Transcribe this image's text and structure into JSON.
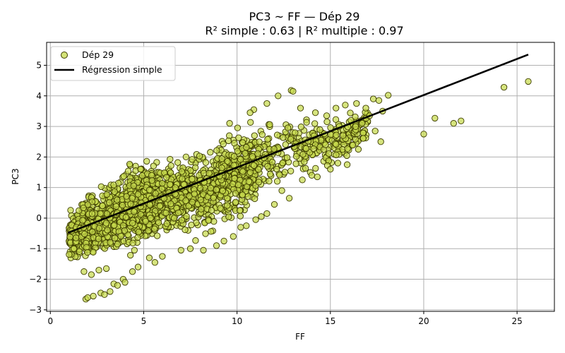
{
  "chart_data": {
    "type": "scatter",
    "title": "PC3 ~ FF — Dép 29",
    "subtitle": "R² simple : 0.63 | R² multiple : 0.97",
    "xlabel": "FF",
    "ylabel": "PC3",
    "xlim": [
      -0.2,
      27.0
    ],
    "ylim": [
      -3.05,
      5.75
    ],
    "xticks": [
      0,
      5,
      10,
      15,
      20,
      25
    ],
    "yticks": [
      -3,
      -2,
      -1,
      0,
      1,
      2,
      3,
      4,
      5
    ],
    "grid": true,
    "legend": {
      "placement": "top-left"
    },
    "colors": {
      "point_fill": "#c6d94c",
      "point_edge": "#3d3d00",
      "line": "#000000",
      "grid": "#b0b0b0"
    },
    "series": [
      {
        "name": "Dép 29",
        "kind": "scatter",
        "cloud": [
          {
            "x": 1.0,
            "y_min": -1.55,
            "y_max": 0.35
          },
          {
            "x": 2.0,
            "y_min": -1.6,
            "y_max": 1.0
          },
          {
            "x": 3.0,
            "y_min": -1.5,
            "y_max": 1.35
          },
          {
            "x": 4.0,
            "y_min": -1.3,
            "y_max": 1.9
          },
          {
            "x": 5.0,
            "y_min": -1.2,
            "y_max": 2.2
          },
          {
            "x": 6.0,
            "y_min": -1.15,
            "y_max": 2.5
          },
          {
            "x": 7.0,
            "y_min": -0.95,
            "y_max": 2.45
          },
          {
            "x": 8.0,
            "y_min": -0.9,
            "y_max": 2.6
          },
          {
            "x": 9.0,
            "y_min": -0.6,
            "y_max": 3.0
          },
          {
            "x": 10.0,
            "y_min": -0.35,
            "y_max": 3.25
          },
          {
            "x": 11.0,
            "y_min": -0.15,
            "y_max": 3.4
          },
          {
            "x": 12.0,
            "y_min": 0.3,
            "y_max": 3.9
          },
          {
            "x": 13.0,
            "y_min": 0.9,
            "y_max": 4.15
          },
          {
            "x": 14.0,
            "y_min": 1.2,
            "y_max": 3.5
          },
          {
            "x": 15.0,
            "y_min": 1.4,
            "y_max": 3.6
          },
          {
            "x": 16.0,
            "y_min": 1.7,
            "y_max": 3.7
          },
          {
            "x": 17.0,
            "y_min": 2.3,
            "y_max": 3.9
          }
        ],
        "points": [
          [
            1.9,
            -2.65
          ],
          [
            2.0,
            -2.6
          ],
          [
            2.3,
            -2.55
          ],
          [
            2.7,
            -2.45
          ],
          [
            2.9,
            -2.5
          ],
          [
            3.2,
            -2.4
          ],
          [
            3.4,
            -2.15
          ],
          [
            3.6,
            -2.2
          ],
          [
            3.9,
            -2.0
          ],
          [
            4.0,
            -2.1
          ],
          [
            1.8,
            -1.75
          ],
          [
            2.2,
            -1.85
          ],
          [
            2.6,
            -1.7
          ],
          [
            3.0,
            -1.65
          ],
          [
            4.4,
            -1.75
          ],
          [
            4.7,
            -1.6
          ],
          [
            5.3,
            -1.3
          ],
          [
            5.6,
            -1.45
          ],
          [
            6.0,
            -1.25
          ],
          [
            7.0,
            -1.05
          ],
          [
            7.5,
            -1.0
          ],
          [
            8.2,
            -1.05
          ],
          [
            8.9,
            -0.9
          ],
          [
            9.3,
            -0.75
          ],
          [
            9.8,
            -0.6
          ],
          [
            10.2,
            -0.3
          ],
          [
            10.5,
            -0.25
          ],
          [
            11.0,
            -0.05
          ],
          [
            11.3,
            0.05
          ],
          [
            11.6,
            0.15
          ],
          [
            12.0,
            0.45
          ],
          [
            12.4,
            0.9
          ],
          [
            12.8,
            0.65
          ],
          [
            13.5,
            1.25
          ],
          [
            14.0,
            1.4
          ],
          [
            14.3,
            1.35
          ],
          [
            15.0,
            1.6
          ],
          [
            15.4,
            1.8
          ],
          [
            15.9,
            1.75
          ],
          [
            12.9,
            4.18
          ],
          [
            13.0,
            4.15
          ],
          [
            12.2,
            4.0
          ],
          [
            11.6,
            3.75
          ],
          [
            10.9,
            3.55
          ],
          [
            10.7,
            3.45
          ],
          [
            9.6,
            3.1
          ],
          [
            13.4,
            3.6
          ],
          [
            14.2,
            3.45
          ],
          [
            14.8,
            3.35
          ],
          [
            15.3,
            3.6
          ],
          [
            15.8,
            3.7
          ],
          [
            16.4,
            3.75
          ],
          [
            17.3,
            3.9
          ],
          [
            17.6,
            3.85
          ],
          [
            16.9,
            3.6
          ],
          [
            16.1,
            3.2
          ],
          [
            16.7,
            3.1
          ],
          [
            17.1,
            3.35
          ],
          [
            17.4,
            2.85
          ],
          [
            17.8,
            3.5
          ],
          [
            16.5,
            2.25
          ],
          [
            17.7,
            2.5
          ],
          [
            18.1,
            4.02
          ],
          [
            20.0,
            2.75
          ],
          [
            20.6,
            3.27
          ],
          [
            21.6,
            3.1
          ],
          [
            22.0,
            3.18
          ],
          [
            24.3,
            4.28
          ],
          [
            25.6,
            4.47
          ]
        ]
      },
      {
        "name": "Régression simple",
        "kind": "line",
        "x": [
          0.95,
          25.6
        ],
        "y": [
          -0.48,
          5.35
        ]
      }
    ]
  }
}
